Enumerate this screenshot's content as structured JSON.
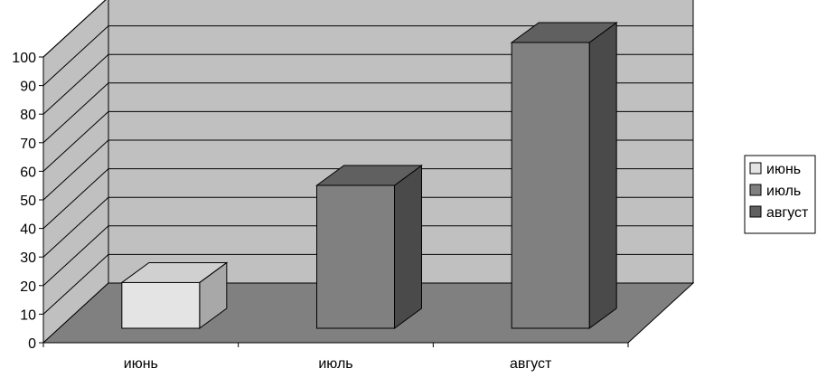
{
  "chart_data": {
    "type": "bar",
    "style": "3d-column",
    "categories": [
      "июнь",
      "июль",
      "август"
    ],
    "values": [
      16,
      50,
      100
    ],
    "ylim": [
      0,
      100
    ],
    "yticks": [
      "0",
      "10",
      "20",
      "30",
      "40",
      "50",
      "60",
      "70",
      "80",
      "90",
      "100"
    ],
    "legend": {
      "placement": "right",
      "entries": [
        "июнь",
        "июль",
        "август"
      ]
    },
    "grid": true,
    "colors": {
      "back_wall": "#c0c0c0",
      "side_wall": "#c0c0c0",
      "floor": "#808080",
      "bars_front": [
        "#e4e4e4",
        "#808080",
        "#808080"
      ],
      "bars_side": [
        "#a8a8a8",
        "#4a4a4a",
        "#4a4a4a"
      ],
      "bars_top": [
        "#d0d0d0",
        "#606060",
        "#606060"
      ],
      "legend_swatches": [
        "#e4e4e4",
        "#808080",
        "#606060"
      ]
    }
  }
}
